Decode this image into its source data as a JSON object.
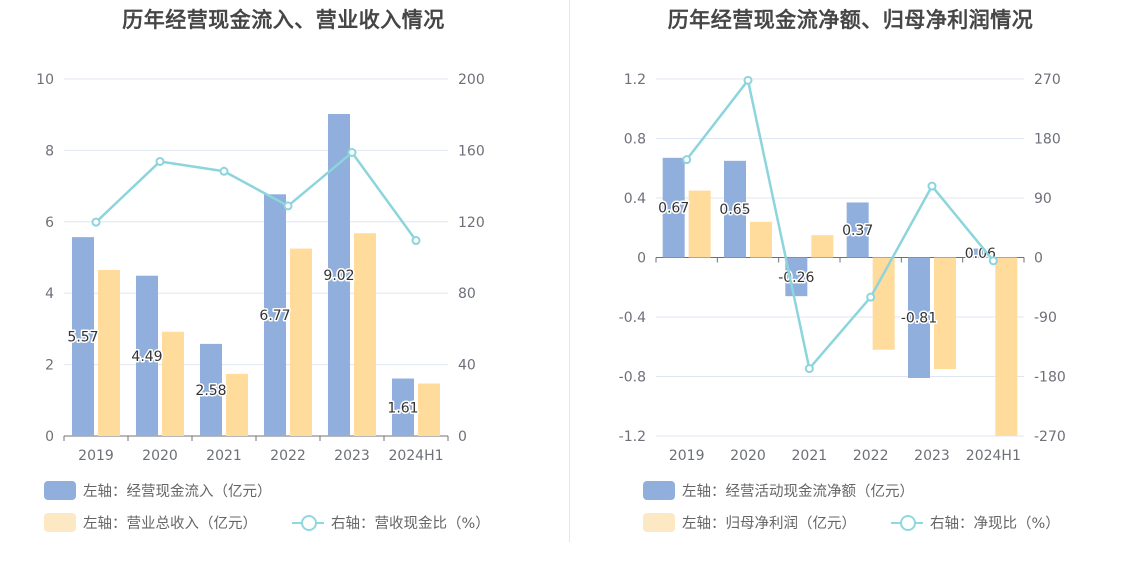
{
  "colors": {
    "bar_primary": "#90afdc",
    "bar_secondary": "#ffdb9c",
    "line": "#8dd5dc",
    "legend_secondary_swatch": "#fde8c4",
    "grid": "#e0e6f1",
    "axis_text": "#6e7079"
  },
  "charts": {
    "left": {
      "title": "历年经营现金流入、营业收入情况",
      "legend": {
        "primary": "左轴：经营现金流入（亿元）",
        "secondary": "左轴：营业总收入（亿元）",
        "line": "右轴：营收现金比（%）"
      }
    },
    "right": {
      "title": "历年经营现金流净额、归母净利润情况",
      "legend": {
        "primary": "左轴：经营活动现金流净额（亿元）",
        "secondary": "左轴：归母净利润（亿元）",
        "line": "右轴：净现比（%）"
      }
    }
  },
  "chart_data": [
    {
      "type": "bar",
      "title": "历年经营现金流入、营业收入情况",
      "categories": [
        "2019",
        "2020",
        "2021",
        "2022",
        "2023",
        "2024H1"
      ],
      "series": [
        {
          "name": "左轴：经营现金流入（亿元）",
          "type": "bar",
          "axis": "left",
          "labeled": true,
          "values": [
            5.57,
            4.49,
            2.58,
            6.77,
            9.02,
            1.61
          ]
        },
        {
          "name": "左轴：营业总收入（亿元）",
          "type": "bar",
          "axis": "left",
          "labeled": false,
          "values": [
            4.65,
            2.92,
            1.74,
            5.25,
            5.68,
            1.47
          ]
        },
        {
          "name": "右轴：营收现金比（%）",
          "type": "line",
          "axis": "right",
          "labeled": false,
          "values": [
            119.8,
            153.8,
            148.3,
            128.9,
            158.8,
            109.5
          ]
        }
      ],
      "y_left": {
        "min": 0,
        "max": 10,
        "ticks": [
          "0",
          "2",
          "4",
          "6",
          "8",
          "10"
        ]
      },
      "y_right": {
        "min": 0,
        "max": 200,
        "ticks": [
          "0",
          "40",
          "80",
          "120",
          "160",
          "200"
        ]
      },
      "grid": true,
      "legend_position": "bottom"
    },
    {
      "type": "bar",
      "title": "历年经营现金流净额、归母净利润情况",
      "categories": [
        "2019",
        "2020",
        "2021",
        "2022",
        "2023",
        "2024H1"
      ],
      "series": [
        {
          "name": "左轴：经营活动现金流净额（亿元）",
          "type": "bar",
          "axis": "left",
          "labeled": true,
          "values": [
            0.67,
            0.65,
            -0.26,
            0.37,
            -0.81,
            0.06
          ]
        },
        {
          "name": "左轴：归母净利润（亿元）",
          "type": "bar",
          "axis": "left",
          "labeled": false,
          "values": [
            0.45,
            0.24,
            0.15,
            -0.62,
            -0.75,
            -1.2
          ]
        },
        {
          "name": "右轴：净现比（%）",
          "type": "line",
          "axis": "right",
          "labeled": false,
          "values": [
            148,
            268,
            -168,
            -60,
            108,
            -5
          ]
        }
      ],
      "y_left": {
        "min": -1.2,
        "max": 1.2,
        "ticks": [
          "-1.2",
          "-0.8",
          "-0.4",
          "0",
          "0.4",
          "0.8",
          "1.2"
        ]
      },
      "y_right": {
        "min": -270,
        "max": 270,
        "ticks": [
          "-270",
          "-180",
          "-90",
          "0",
          "90",
          "180",
          "270"
        ]
      },
      "grid": true,
      "legend_position": "bottom"
    }
  ]
}
